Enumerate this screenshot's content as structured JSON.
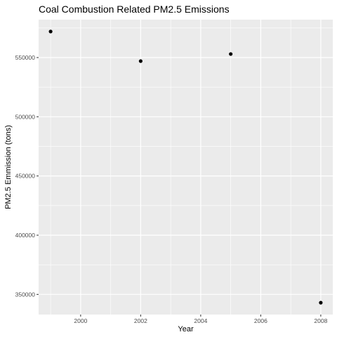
{
  "chart_data": {
    "type": "scatter",
    "title": "Coal Combustion Related PM2.5 Emissions",
    "xlabel": "Year",
    "ylabel": "PM2.5 Emmission (tons)",
    "x": [
      1999,
      2002,
      2005,
      2008
    ],
    "y": [
      572000,
      547000,
      553000,
      343000
    ],
    "xlim": [
      1998.6,
      2008.4
    ],
    "ylim": [
      333000,
      582000
    ],
    "x_ticks": [
      2000,
      2002,
      2004,
      2006,
      2008
    ],
    "x_tick_labels": [
      "2000",
      "2002",
      "2004",
      "2006",
      "2008"
    ],
    "y_ticks": [
      350000,
      400000,
      450000,
      500000,
      550000
    ],
    "y_tick_labels": [
      "350000",
      "400000",
      "450000",
      "500000",
      "550000"
    ],
    "grid": true,
    "panel_color": "#ebebeb",
    "grid_color": "#ffffff",
    "point_color": "#000000"
  }
}
